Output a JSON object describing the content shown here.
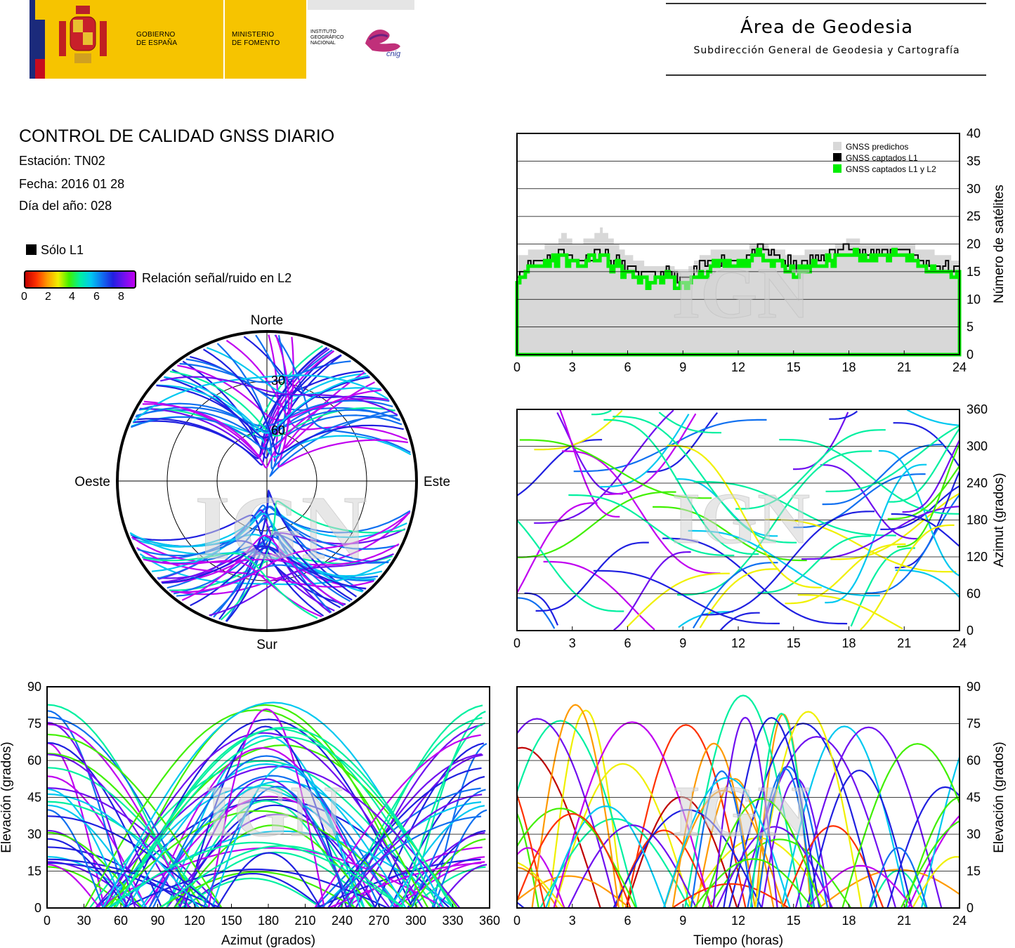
{
  "header": {
    "gov_line1": "GOBIERNO",
    "gov_line2": "DE ESPAÑA",
    "min_line1": "MINISTERIO",
    "min_line2": "DE FOMENTO",
    "ign_line1": "INSTITUTO",
    "ign_line2": "GEOGRÁFICO",
    "ign_line3": "NACIONAL",
    "cnig": "cnig",
    "area_title": "Área de Geodesia",
    "area_subtitle": "Subdirección General de Geodesia y Cartografía"
  },
  "report": {
    "title": "CONTROL DE CALIDAD GNSS DIARIO",
    "station": "Estación: TN02",
    "date": "Fecha: 2016 01 28",
    "doy": "Día del año: 028"
  },
  "legend": {
    "l1_only": "Sólo L1",
    "snr_label": "Relación señal/ruido en L2",
    "snr_ticks": [
      "0",
      "2",
      "4",
      "6",
      "8"
    ]
  },
  "watermark": "IGN",
  "colors": {
    "predicted": "#d8d8d8",
    "l1": "#000000",
    "l1l2": "#00ee00",
    "snr_scale": [
      "#c00000",
      "#ff3000",
      "#ff9a00",
      "#f0f000",
      "#40f000",
      "#00f0a0",
      "#00c8f0",
      "#1070f0",
      "#2020e0",
      "#7010f0",
      "#c000f0"
    ]
  },
  "chart_data": [
    {
      "id": "satellites",
      "type": "area",
      "xlim": [
        0,
        24
      ],
      "ylim": [
        0,
        40
      ],
      "x_ticks": [
        "0",
        "3",
        "6",
        "9",
        "12",
        "15",
        "18",
        "21",
        "24"
      ],
      "y_ticks": [
        "0",
        "5",
        "10",
        "15",
        "20",
        "25",
        "30",
        "35",
        "40"
      ],
      "ylabel": "Número de satélites",
      "legend_position": "top-right",
      "grid": true,
      "x": [
        0,
        1,
        2,
        2.5,
        3,
        4,
        4.5,
        5,
        6,
        7,
        8,
        9,
        10,
        11,
        12,
        13,
        14,
        15,
        16,
        17,
        18,
        19,
        20,
        21,
        22,
        23,
        24
      ],
      "series": [
        {
          "name": "GNSS predichos",
          "values": [
            18,
            19,
            20,
            22,
            20,
            21,
            23,
            21,
            18,
            16,
            16,
            15,
            18,
            19,
            19,
            20,
            19,
            18,
            19,
            19,
            21,
            20,
            20,
            20,
            19,
            18,
            17
          ]
        },
        {
          "name": "GNSS captados L1",
          "values": [
            15,
            17,
            18,
            19,
            17,
            18,
            19,
            17,
            16,
            14,
            15,
            13,
            16,
            17,
            17,
            19,
            18,
            16,
            17,
            18,
            20,
            18,
            19,
            19,
            17,
            16,
            15
          ]
        },
        {
          "name": "GNSS captados L1 y L2",
          "values": [
            14,
            16,
            17,
            18,
            16,
            17,
            18,
            16,
            15,
            13,
            14,
            12,
            15,
            16,
            16,
            18,
            17,
            15,
            16,
            17,
            19,
            17,
            18,
            18,
            16,
            15,
            14
          ]
        }
      ]
    },
    {
      "id": "skyplot",
      "type": "scatter",
      "labels": {
        "north": "Norte",
        "south": "Sur",
        "west": "Oeste",
        "east": "Este"
      },
      "rings": [
        "30",
        "60"
      ],
      "tracks": [
        {
          "azimuth_start": 310,
          "azimuth_end": 50,
          "elevation_max": 85
        },
        {
          "azimuth_start": 320,
          "azimuth_end": 40,
          "elevation_max": 75
        },
        {
          "azimuth_start": 200,
          "azimuth_end": 160,
          "elevation_max": 60
        },
        {
          "azimuth_start": 240,
          "azimuth_end": 120,
          "elevation_max": 55
        }
      ]
    },
    {
      "id": "azimuth-time",
      "type": "scatter",
      "xlim": [
        0,
        24
      ],
      "ylim": [
        0,
        360
      ],
      "x_ticks": [
        "0",
        "3",
        "6",
        "9",
        "12",
        "15",
        "18",
        "21",
        "24"
      ],
      "y_ticks": [
        "0",
        "60",
        "120",
        "180",
        "240",
        "300",
        "360"
      ],
      "ylabel": "Azimut (grados)",
      "grid": true
    },
    {
      "id": "elevation-azimuth",
      "type": "scatter",
      "xlim": [
        0,
        360
      ],
      "ylim": [
        0,
        90
      ],
      "x_ticks": [
        "0",
        "30",
        "60",
        "90",
        "120",
        "150",
        "180",
        "210",
        "240",
        "270",
        "300",
        "330",
        "360"
      ],
      "y_ticks": [
        "0",
        "15",
        "30",
        "45",
        "60",
        "75",
        "90"
      ],
      "xlabel": "Azimut (grados)",
      "ylabel": "Elevación (grados)",
      "grid": true
    },
    {
      "id": "elevation-time",
      "type": "line",
      "xlim": [
        0,
        24
      ],
      "ylim": [
        0,
        90
      ],
      "x_ticks": [
        "0",
        "3",
        "6",
        "9",
        "12",
        "15",
        "18",
        "21",
        "24"
      ],
      "y_ticks": [
        "0",
        "15",
        "30",
        "45",
        "60",
        "75",
        "90"
      ],
      "xlabel": "Tiempo (horas)",
      "ylabel": "Elevación (grados)",
      "grid": true
    }
  ]
}
